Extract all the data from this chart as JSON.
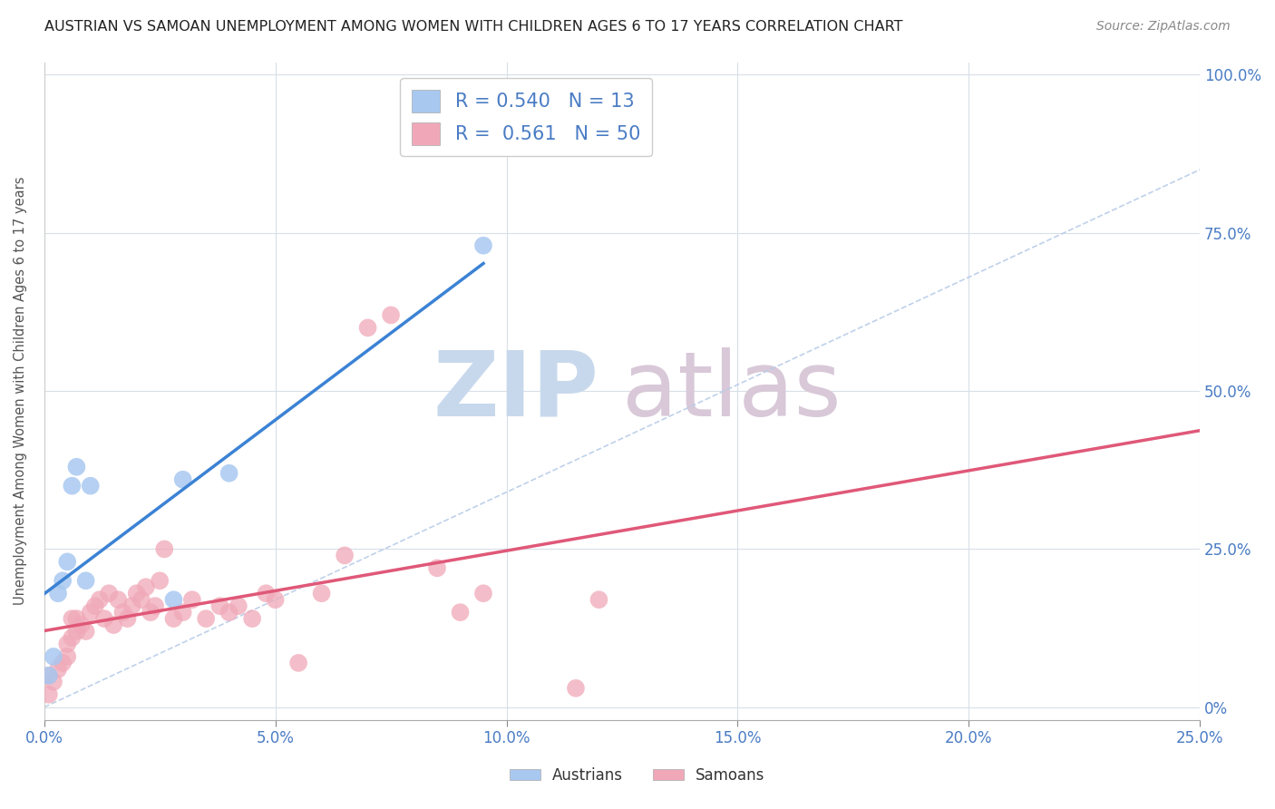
{
  "title": "AUSTRIAN VS SAMOAN UNEMPLOYMENT AMONG WOMEN WITH CHILDREN AGES 6 TO 17 YEARS CORRELATION CHART",
  "source": "Source: ZipAtlas.com",
  "ylabel": "Unemployment Among Women with Children Ages 6 to 17 years",
  "xlim": [
    0.0,
    0.25
  ],
  "ylim": [
    -0.02,
    1.02
  ],
  "xticks": [
    0.0,
    0.05,
    0.1,
    0.15,
    0.2,
    0.25
  ],
  "yticks": [
    0.0,
    0.25,
    0.5,
    0.75,
    1.0
  ],
  "R_austrians": 0.54,
  "N_austrians": 13,
  "R_samoans": 0.561,
  "N_samoans": 50,
  "austrian_color": "#a8c8f0",
  "samoan_color": "#f0a8b8",
  "austrian_line_color": "#3b82d4",
  "samoan_line_color": "#e05878",
  "ref_line_color": "#b8cce8",
  "watermark_zip": "ZIP",
  "watermark_atlas": "atlas",
  "watermark_color_zip": "#c8d8ec",
  "watermark_color_atlas": "#d8c8d8",
  "background_color": "#ffffff",
  "tick_color": "#4a7cc4",
  "austrians_x": [
    0.001,
    0.002,
    0.003,
    0.004,
    0.005,
    0.006,
    0.007,
    0.009,
    0.01,
    0.028,
    0.03,
    0.04,
    0.095
  ],
  "austrians_y": [
    0.05,
    0.08,
    0.18,
    0.2,
    0.23,
    0.35,
    0.38,
    0.2,
    0.35,
    0.17,
    0.36,
    0.37,
    0.73
  ],
  "samoans_x": [
    0.001,
    0.001,
    0.002,
    0.003,
    0.004,
    0.005,
    0.005,
    0.006,
    0.006,
    0.007,
    0.007,
    0.008,
    0.009,
    0.01,
    0.011,
    0.012,
    0.013,
    0.014,
    0.015,
    0.016,
    0.017,
    0.018,
    0.019,
    0.02,
    0.021,
    0.022,
    0.023,
    0.024,
    0.025,
    0.026,
    0.028,
    0.03,
    0.032,
    0.035,
    0.038,
    0.04,
    0.042,
    0.045,
    0.048,
    0.05,
    0.055,
    0.06,
    0.065,
    0.07,
    0.075,
    0.085,
    0.09,
    0.095,
    0.115,
    0.12
  ],
  "samoans_y": [
    0.02,
    0.05,
    0.04,
    0.06,
    0.07,
    0.08,
    0.1,
    0.11,
    0.14,
    0.12,
    0.14,
    0.13,
    0.12,
    0.15,
    0.16,
    0.17,
    0.14,
    0.18,
    0.13,
    0.17,
    0.15,
    0.14,
    0.16,
    0.18,
    0.17,
    0.19,
    0.15,
    0.16,
    0.2,
    0.25,
    0.14,
    0.15,
    0.17,
    0.14,
    0.16,
    0.15,
    0.16,
    0.14,
    0.18,
    0.17,
    0.07,
    0.18,
    0.24,
    0.6,
    0.62,
    0.22,
    0.15,
    0.18,
    0.03,
    0.17
  ]
}
